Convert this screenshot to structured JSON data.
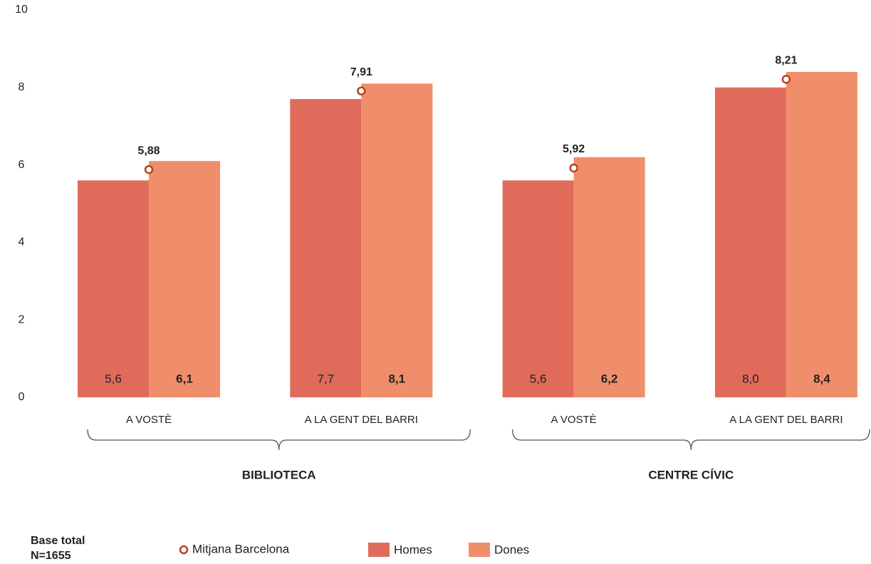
{
  "chart_data": {
    "type": "bar",
    "categories": [
      "A VOSTÈ",
      "A LA GENT DEL BARRI",
      "A VOSTÈ",
      "A LA GENT DEL BARRI"
    ],
    "groups": [
      "BIBLIOTECA",
      "CENTRE CÍVIC"
    ],
    "series": [
      {
        "name": "Homes",
        "color": "#e06b5b",
        "values": [
          5.6,
          7.7,
          5.6,
          8.0
        ],
        "value_labels": [
          "5,6",
          "7,7",
          "5,6",
          "8,0"
        ]
      },
      {
        "name": "Dones",
        "color": "#f08e6b",
        "values": [
          6.1,
          8.1,
          6.2,
          8.4
        ],
        "value_labels": [
          "6,1",
          "8,1",
          "6,2",
          "8,4"
        ]
      }
    ],
    "mean": {
      "name": "Mitjana Barcelona",
      "color": "#b5441c",
      "values": [
        5.88,
        7.91,
        5.92,
        8.21
      ],
      "value_labels": [
        "5,88",
        "7,91",
        "5,92",
        "8,21"
      ]
    },
    "ylim": [
      0,
      10
    ],
    "yticks": [
      0,
      2,
      4,
      6,
      8,
      10
    ],
    "note": [
      "Base total",
      "N=1655"
    ]
  }
}
